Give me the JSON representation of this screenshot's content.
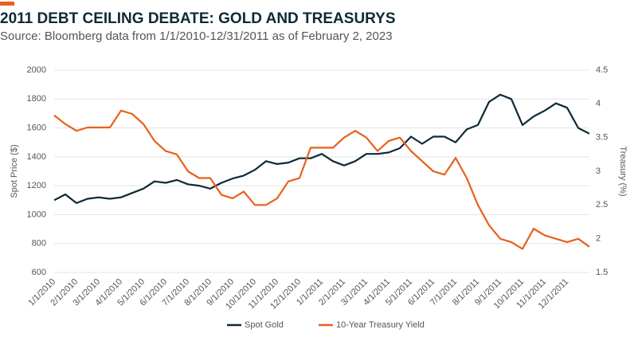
{
  "chart_data": {
    "type": "line",
    "title": "2011 DEBT CEILING DEBATE: GOLD AND TREASURYS",
    "subtitle": "Source: Bloomberg data from 1/1/2010-12/31/2011 as of February 2, 2023",
    "ylabel": "Spot Price ($)",
    "y2label": "Treasury (%)",
    "categories": [
      "1/1/2010",
      null,
      "2/1/2010",
      null,
      "3/1/2010",
      null,
      "4/1/2010",
      null,
      "5/1/2010",
      null,
      "6/1/2010",
      null,
      "7/1/2010",
      null,
      "8/1/2010",
      null,
      "9/1/2010",
      null,
      "10/1/2010",
      null,
      "11/1/2010",
      null,
      "12/1/2010",
      null,
      "1/1/2011",
      null,
      "2/1/2011",
      null,
      "3/1/2011",
      null,
      "4/1/2011",
      null,
      "5/1/2011",
      null,
      "6/1/2011",
      null,
      "7/1/2011",
      null,
      "8/1/2011",
      null,
      "9/1/2011",
      null,
      "10/1/2011",
      null,
      "11/1/2011",
      null,
      "12/1/2011",
      null,
      null
    ],
    "series": [
      {
        "name": "Spot Gold",
        "color": "#0d2a35",
        "values": [
          1100,
          1140,
          1080,
          1110,
          1120,
          1110,
          1120,
          1150,
          1180,
          1230,
          1220,
          1240,
          1210,
          1200,
          1180,
          1220,
          1250,
          1270,
          1310,
          1370,
          1350,
          1360,
          1390,
          1390,
          1420,
          1370,
          1340,
          1370,
          1420,
          1420,
          1430,
          1460,
          1540,
          1490,
          1540,
          1540,
          1500,
          1590,
          1620,
          1780,
          1830,
          1800,
          1620,
          1680,
          1720,
          1770,
          1740,
          1600,
          1560
        ]
      },
      {
        "name": "10-Year Treasury Yield",
        "color": "#e8601c",
        "axis": "y2",
        "values": [
          3.83,
          3.7,
          3.6,
          3.65,
          3.65,
          3.65,
          3.9,
          3.85,
          3.7,
          3.45,
          3.3,
          3.25,
          3.0,
          2.9,
          2.9,
          2.65,
          2.6,
          2.7,
          2.5,
          2.5,
          2.6,
          2.85,
          2.9,
          3.35,
          3.35,
          3.35,
          3.5,
          3.6,
          3.5,
          3.3,
          3.45,
          3.5,
          3.3,
          3.15,
          3.0,
          2.95,
          3.2,
          2.9,
          2.5,
          2.2,
          2.0,
          1.95,
          1.85,
          2.15,
          2.05,
          2.0,
          1.95,
          2.0,
          1.88
        ]
      }
    ],
    "ylim": [
      600,
      2000
    ],
    "yticks": [
      600,
      800,
      1000,
      1200,
      1400,
      1600,
      1800,
      2000
    ],
    "y2lim": [
      1.5,
      4.5
    ],
    "y2ticks": [
      1.5,
      2,
      2.5,
      3,
      3.5,
      4,
      4.5
    ],
    "grid": true,
    "legend": "bottom"
  }
}
